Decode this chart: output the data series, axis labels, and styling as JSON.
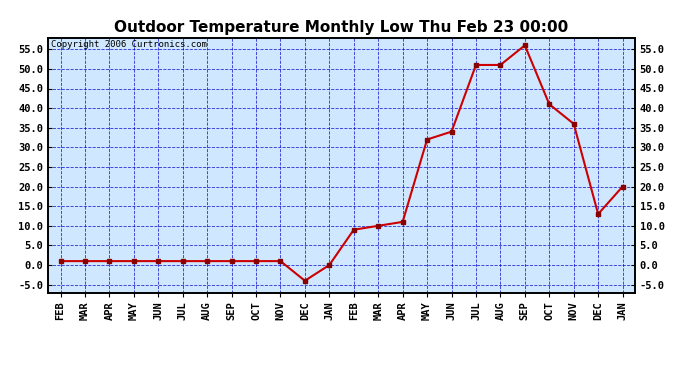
{
  "title": "Outdoor Temperature Monthly Low Thu Feb 23 00:00",
  "copyright": "Copyright 2006 Curtronics.com",
  "x_labels": [
    "FEB",
    "MAR",
    "APR",
    "MAY",
    "JUN",
    "JUL",
    "AUG",
    "SEP",
    "OCT",
    "NOV",
    "DEC",
    "JAN",
    "FEB",
    "MAR",
    "APR",
    "MAY",
    "JUN",
    "JUL",
    "AUG",
    "SEP",
    "OCT",
    "NOV",
    "DEC",
    "JAN"
  ],
  "y_values": [
    1,
    1,
    1,
    1,
    1,
    1,
    1,
    1,
    1,
    1,
    -4,
    0,
    9,
    10,
    11,
    32,
    34,
    51,
    51,
    56,
    41,
    36,
    13,
    20
  ],
  "ylim": [
    -7,
    58
  ],
  "yticks": [
    -5.0,
    0.0,
    5.0,
    10.0,
    15.0,
    20.0,
    25.0,
    30.0,
    35.0,
    40.0,
    45.0,
    50.0,
    55.0
  ],
  "line_color": "#cc0000",
  "marker_color": "#880000",
  "bg_color": "#ffffff",
  "plot_bg": "#d0e8ff",
  "grid_color": "#0000cc",
  "title_fontsize": 11,
  "tick_fontsize": 7.5
}
